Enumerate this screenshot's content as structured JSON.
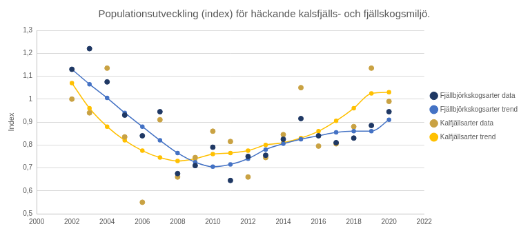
{
  "chart_data": {
    "type": "scatter",
    "title": "Populationsutveckling (index) för häckande kalsfjälls- och fjällskogsmiljö.",
    "y_label": "Index",
    "x": [
      2002,
      2003,
      2004,
      2005,
      2006,
      2007,
      2008,
      2009,
      2010,
      2011,
      2012,
      2013,
      2014,
      2015,
      2016,
      2017,
      2018,
      2019,
      2020
    ],
    "series": [
      {
        "name": "Fjällbjörkskogsarter data",
        "type": "scatter",
        "marker": "circle",
        "color": "#1f3864",
        "values": [
          1.13,
          1.22,
          1.075,
          0.93,
          0.84,
          0.945,
          0.675,
          0.71,
          0.79,
          0.645,
          0.75,
          0.755,
          0.825,
          0.915,
          0.84,
          0.81,
          0.83,
          0.885,
          0.945
        ]
      },
      {
        "name": "Fjällbjörkskogsarter trend",
        "type": "line",
        "marker": "circle",
        "line_style": "solid",
        "color": "#4472c4",
        "values": [
          1.13,
          1.065,
          1.005,
          0.94,
          0.88,
          0.82,
          0.765,
          0.725,
          0.705,
          0.715,
          0.74,
          0.78,
          0.805,
          0.825,
          0.84,
          0.855,
          0.86,
          0.86,
          0.91
        ]
      },
      {
        "name": "Kalfjällsarter data",
        "type": "scatter",
        "marker": "circle",
        "color": "#c9a243",
        "values": [
          1.0,
          0.94,
          1.135,
          0.835,
          0.55,
          0.91,
          0.66,
          0.745,
          0.86,
          0.815,
          0.66,
          0.745,
          0.845,
          1.05,
          0.795,
          0.805,
          0.88,
          1.135,
          0.99
        ]
      },
      {
        "name": "Kalfjällsarter trend",
        "type": "line",
        "marker": "circle",
        "line_style": "solid",
        "color": "#ffc000",
        "values": [
          1.07,
          0.96,
          0.88,
          0.82,
          0.775,
          0.745,
          0.73,
          0.74,
          0.76,
          0.765,
          0.775,
          0.8,
          0.81,
          0.83,
          0.86,
          0.905,
          0.96,
          1.025,
          1.03
        ]
      }
    ],
    "xlim": [
      2000,
      2022
    ],
    "xticks": [
      2000,
      2002,
      2004,
      2006,
      2008,
      2010,
      2012,
      2014,
      2016,
      2018,
      2020,
      2022
    ],
    "ylim": [
      0.5,
      1.3
    ],
    "yticks": [
      {
        "value": 0.5,
        "label": "0,5"
      },
      {
        "value": 0.6,
        "label": "0,6"
      },
      {
        "value": 0.7,
        "label": "0,7"
      },
      {
        "value": 0.8,
        "label": "0,8"
      },
      {
        "value": 0.9,
        "label": "0,9"
      },
      {
        "value": 1,
        "label": "1"
      },
      {
        "value": 1.1,
        "label": "1,1"
      },
      {
        "value": 1.2,
        "label": "1,2"
      },
      {
        "value": 1.3,
        "label": "1,3"
      }
    ],
    "grid": "y",
    "legend": "right"
  }
}
